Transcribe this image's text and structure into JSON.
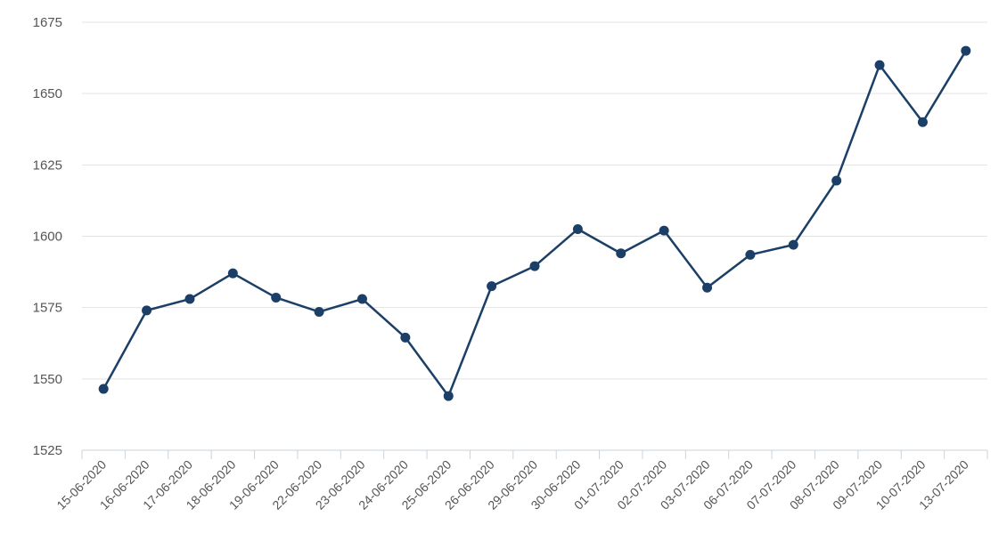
{
  "chart_data": {
    "type": "line",
    "title": "",
    "xlabel": "",
    "ylabel": "",
    "categories": [
      "15-06-2020",
      "16-06-2020",
      "17-06-2020",
      "18-06-2020",
      "19-06-2020",
      "22-06-2020",
      "23-06-2020",
      "24-06-2020",
      "25-06-2020",
      "26-06-2020",
      "29-06-2020",
      "30-06-2020",
      "01-07-2020",
      "02-07-2020",
      "03-07-2020",
      "06-07-2020",
      "07-07-2020",
      "08-07-2020",
      "09-07-2020",
      "10-07-2020",
      "13-07-2020"
    ],
    "series": [
      {
        "values": [
          1546.5,
          1574,
          1578,
          1587,
          1578.5,
          1573.5,
          1578,
          1564.5,
          1544,
          1582.5,
          1589.5,
          1602.5,
          1594,
          1602,
          1582,
          1593.5,
          1597,
          1619.5,
          1660,
          1640,
          1665
        ]
      }
    ],
    "ylim": [
      1525,
      1675
    ],
    "yticks": [
      1525,
      1550,
      1575,
      1600,
      1625,
      1650,
      1675
    ],
    "grid": true,
    "legend": "none",
    "line_color": "#1b3f66",
    "grid_color": "#e3e3e3",
    "axis_color": "#c9d3dc"
  }
}
